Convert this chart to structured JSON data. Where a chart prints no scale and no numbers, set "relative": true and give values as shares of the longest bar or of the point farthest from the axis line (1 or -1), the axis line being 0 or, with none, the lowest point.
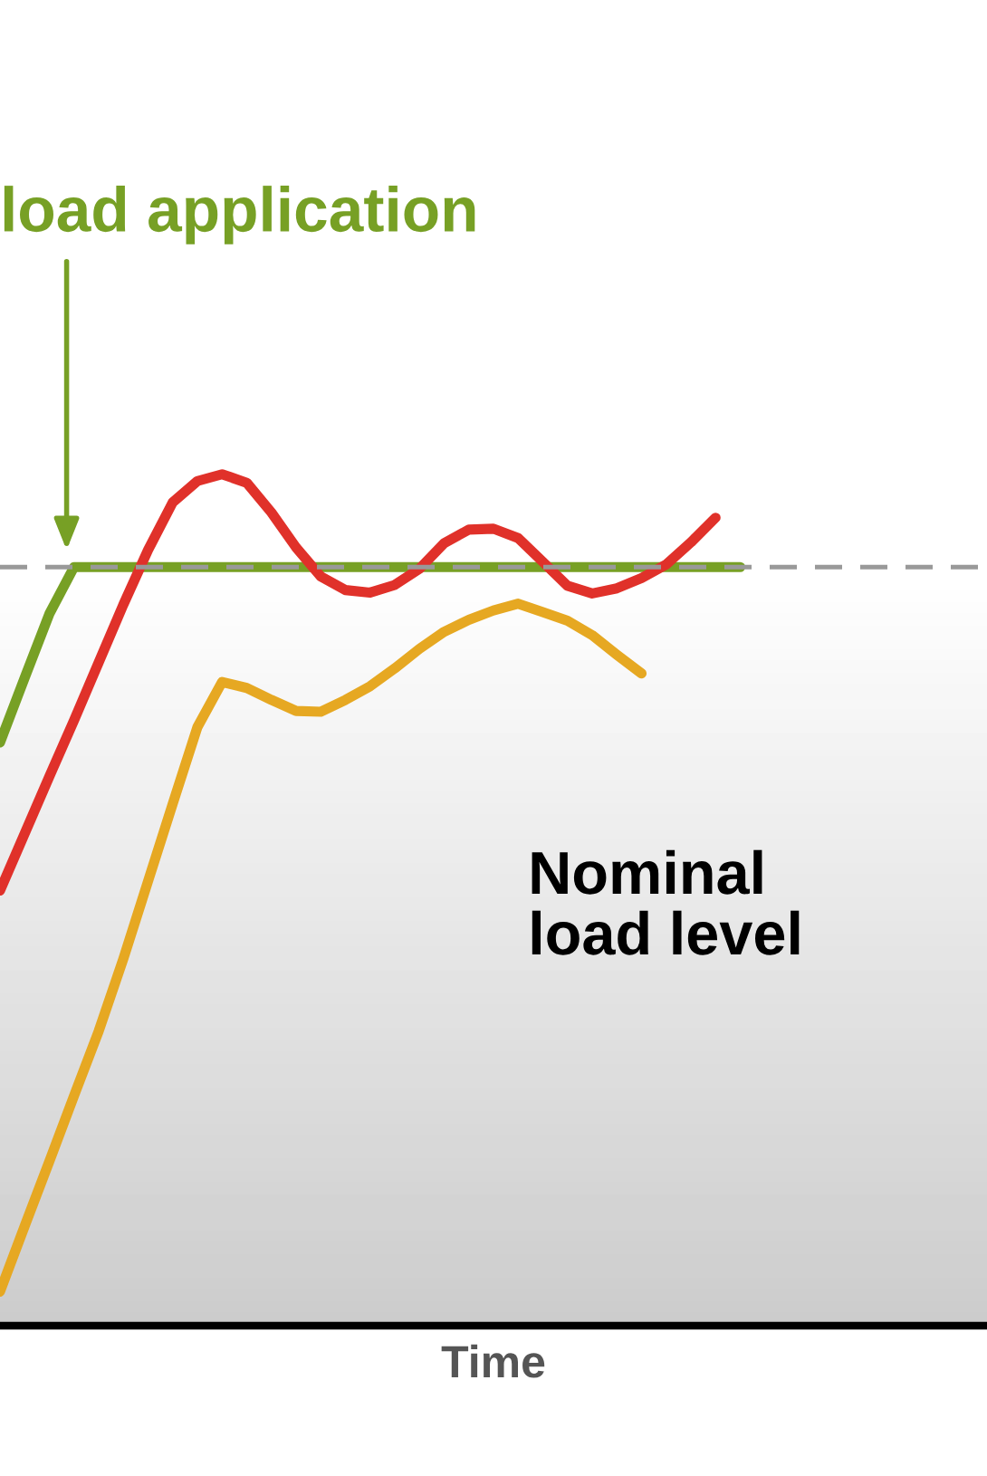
{
  "chart_data": {
    "type": "line",
    "relative": true,
    "xlabel": "Time",
    "marker": "none",
    "categories": [
      null,
      null,
      null,
      null,
      null,
      null,
      null,
      null,
      null,
      null,
      null,
      null,
      null,
      null,
      null,
      null,
      null,
      null,
      null,
      null,
      null,
      null,
      null,
      null,
      null,
      null,
      null,
      null,
      null,
      null,
      null
    ],
    "series": [
      {
        "color": "#77a025",
        "values": [
          0.685,
          0.761,
          0.836,
          0.891,
          0.891,
          0.891,
          0.891,
          0.891,
          0.891,
          0.891,
          0.891,
          0.891,
          0.891,
          0.891,
          0.891,
          0.891,
          0.891,
          0.891,
          0.891,
          0.891,
          0.891,
          0.891,
          0.891,
          0.891,
          0.891,
          0.891,
          0.891,
          0.891,
          0.891,
          0.891,
          0.891
        ]
      },
      {
        "color": "#e0312a",
        "values": [
          0.511,
          0.578,
          0.645,
          0.711,
          0.779,
          0.847,
          0.911,
          0.967,
          0.992,
          1.0,
          0.99,
          0.955,
          0.914,
          0.88,
          0.864,
          0.861,
          0.87,
          0.889,
          0.919,
          0.935,
          0.936,
          0.925,
          0.897,
          0.869,
          0.86,
          0.866,
          0.878,
          0.894,
          0.92,
          0.949,
          null
        ]
      },
      {
        "color": "#e6a822",
        "values": [
          0.04,
          0.117,
          0.193,
          0.27,
          0.346,
          0.431,
          0.522,
          0.613,
          0.703,
          0.756,
          0.749,
          0.735,
          0.722,
          0.721,
          0.735,
          0.751,
          0.772,
          0.795,
          0.815,
          0.829,
          0.84,
          0.848,
          0.838,
          0.828,
          0.811,
          0.788,
          0.766,
          null,
          null,
          null,
          null
        ]
      }
    ],
    "ref_lines": [
      {
        "axis": "y",
        "value": 0.891,
        "color": "#999999",
        "line_style": "dashed"
      }
    ],
    "annotations": [
      "load application",
      "Nominal\nload level"
    ]
  }
}
